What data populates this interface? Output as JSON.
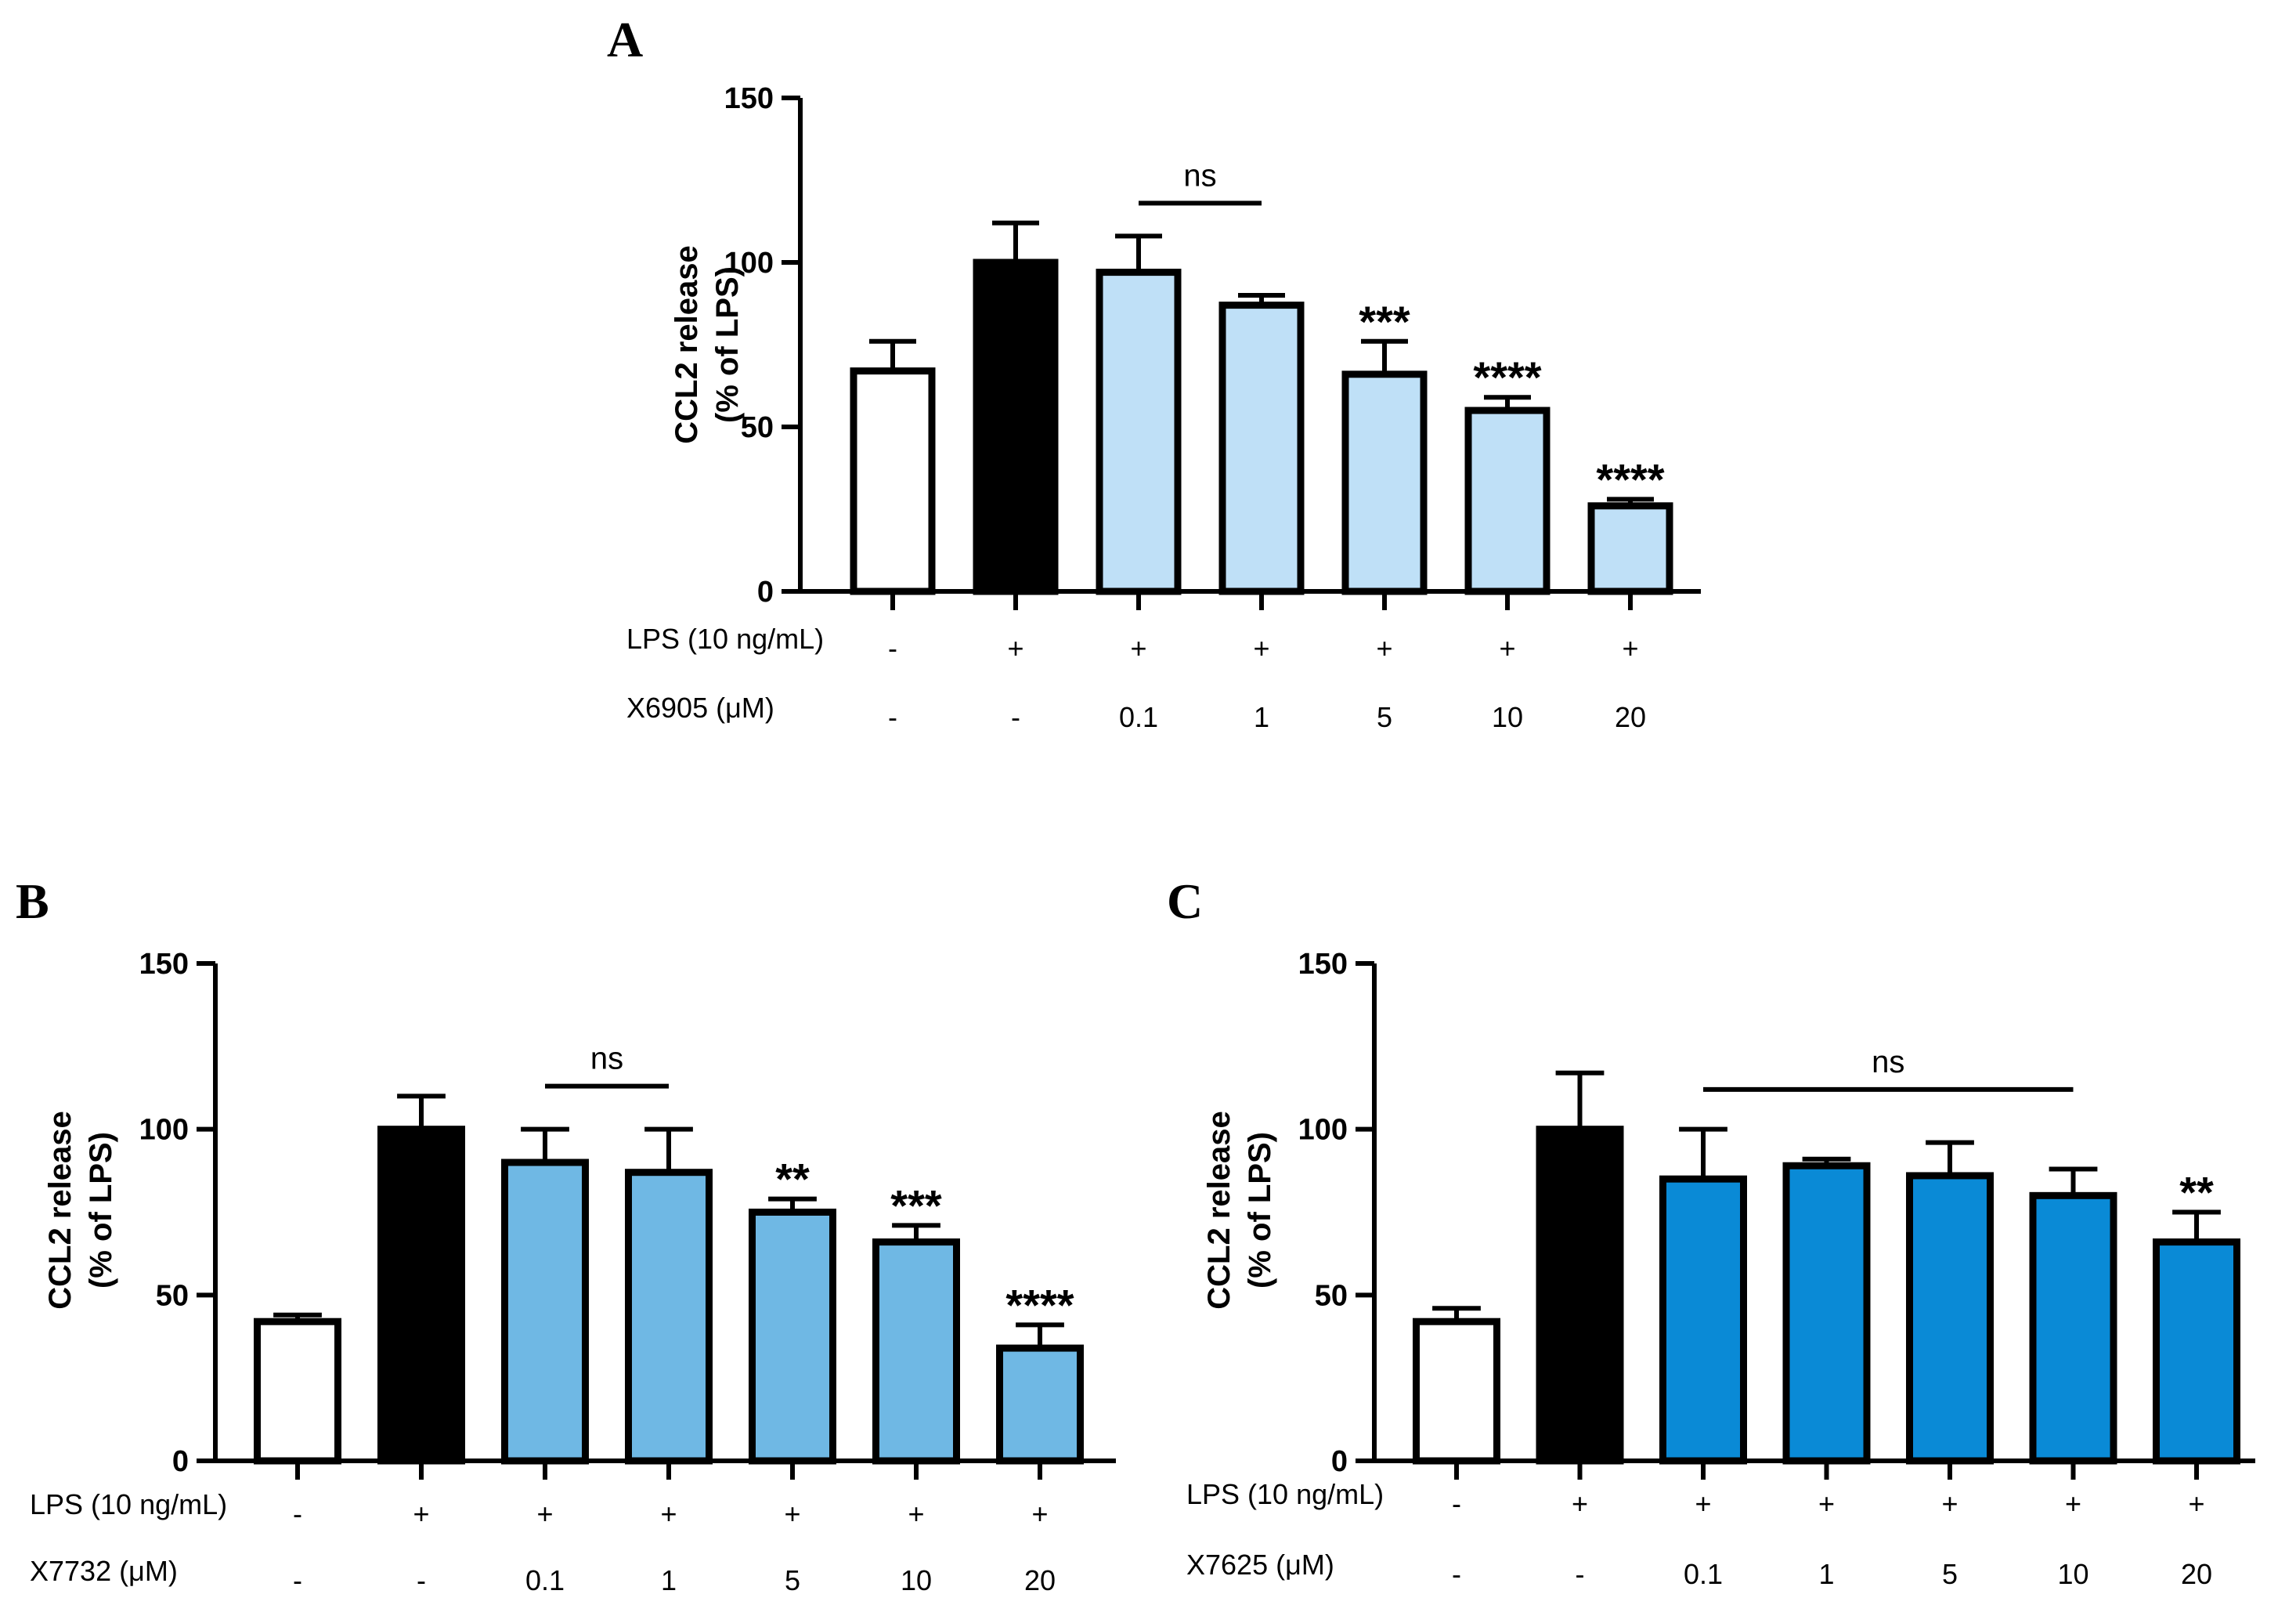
{
  "chart_data": [
    {
      "id": "A",
      "type": "bar",
      "panel_label": "A",
      "ylabel_lines": [
        "CCL2 release",
        "(% of LPS)"
      ],
      "ylim": [
        0,
        150
      ],
      "yticks": [
        0,
        50,
        100,
        150
      ],
      "row_labels": [
        "LPS (10 ng/mL)",
        "X6905 (μM)"
      ],
      "rows": [
        [
          "-",
          "+",
          "+",
          "+",
          "+",
          "+",
          "+"
        ],
        [
          "-",
          "-",
          "0.1",
          "1",
          "5",
          "10",
          "20"
        ]
      ],
      "values": [
        67,
        100,
        97,
        87,
        66,
        55,
        26
      ],
      "errors": [
        9,
        12,
        11,
        3,
        10,
        4,
        2
      ],
      "colors": [
        "#ffffff",
        "#000000",
        "#bfe0f7",
        "#bfe0f7",
        "#bfe0f7",
        "#bfe0f7",
        "#bfe0f7"
      ],
      "significance": [
        "",
        "",
        "",
        "",
        "***",
        "****",
        "****"
      ],
      "ns_bracket": {
        "label": "ns",
        "from": 2,
        "to": 3,
        "y": 118
      }
    },
    {
      "id": "B",
      "type": "bar",
      "panel_label": "B",
      "ylabel_lines": [
        "CCL2 release",
        "(% of LPS)"
      ],
      "ylim": [
        0,
        150
      ],
      "yticks": [
        0,
        50,
        100,
        150
      ],
      "row_labels": [
        "LPS (10 ng/mL)",
        "X7732 (μM)"
      ],
      "rows": [
        [
          "-",
          "+",
          "+",
          "+",
          "+",
          "+",
          "+"
        ],
        [
          "-",
          "-",
          "0.1",
          "1",
          "5",
          "10",
          "20"
        ]
      ],
      "values": [
        42,
        100,
        90,
        87,
        75,
        66,
        34
      ],
      "errors": [
        2,
        10,
        10,
        13,
        4,
        5,
        7
      ],
      "colors": [
        "#ffffff",
        "#000000",
        "#6fb8e4",
        "#6fb8e4",
        "#6fb8e4",
        "#6fb8e4",
        "#6fb8e4"
      ],
      "significance": [
        "",
        "",
        "",
        "",
        "**",
        "***",
        "****"
      ],
      "ns_bracket": {
        "label": "ns",
        "from": 2,
        "to": 3,
        "y": 113
      }
    },
    {
      "id": "C",
      "type": "bar",
      "panel_label": "C",
      "ylabel_lines": [
        "CCL2 release",
        "(% of LPS)"
      ],
      "ylim": [
        0,
        150
      ],
      "yticks": [
        0,
        50,
        100,
        150
      ],
      "row_labels": [
        "LPS (10 ng/mL)",
        "X7625 (μM)"
      ],
      "rows": [
        [
          "-",
          "+",
          "+",
          "+",
          "+",
          "+",
          "+"
        ],
        [
          "-",
          "-",
          "0.1",
          "1",
          "5",
          "10",
          "20"
        ]
      ],
      "values": [
        42,
        100,
        85,
        89,
        86,
        80,
        66
      ],
      "errors": [
        4,
        17,
        15,
        2,
        10,
        8,
        9
      ],
      "colors": [
        "#ffffff",
        "#000000",
        "#0a8ad6",
        "#0a8ad6",
        "#0a8ad6",
        "#0a8ad6",
        "#0a8ad6"
      ],
      "significance": [
        "",
        "",
        "",
        "",
        "",
        "",
        "**"
      ],
      "ns_bracket": {
        "label": "ns",
        "from": 2,
        "to": 5,
        "y": 112
      }
    }
  ]
}
